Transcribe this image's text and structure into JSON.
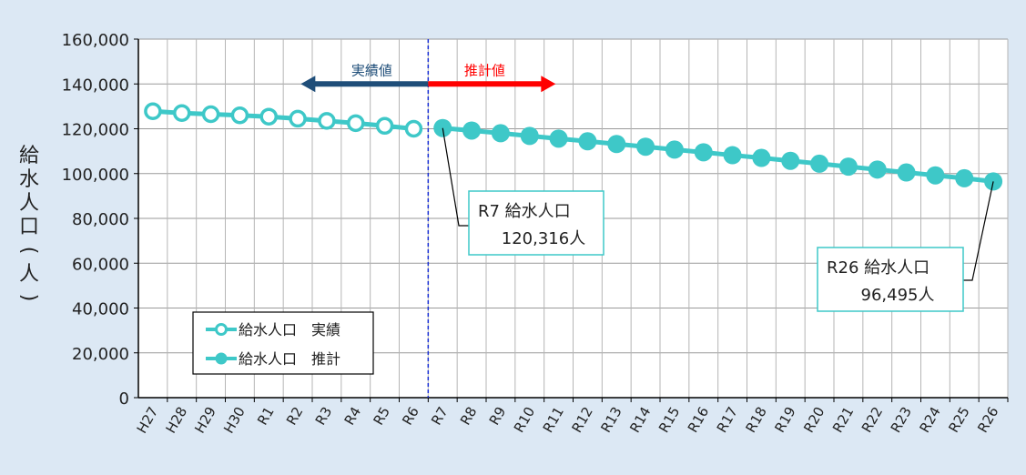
{
  "chart_data": {
    "type": "line",
    "ylabel": "給水人口(人)",
    "ylim": [
      0,
      160000
    ],
    "yticks": [
      0,
      20000,
      40000,
      60000,
      80000,
      100000,
      120000,
      140000,
      160000
    ],
    "ytick_labels": [
      "0",
      "20,000",
      "40,000",
      "60,000",
      "80,000",
      "100,000",
      "120,000",
      "140,000",
      "160,000"
    ],
    "grid": true,
    "categories": [
      "H27",
      "H28",
      "H29",
      "H30",
      "R1",
      "R2",
      "R3",
      "R4",
      "R5",
      "R6",
      "R7",
      "R8",
      "R9",
      "R10",
      "R11",
      "R12",
      "R13",
      "R14",
      "R15",
      "R16",
      "R17",
      "R18",
      "R19",
      "R20",
      "R21",
      "R22",
      "R23",
      "R24",
      "R25",
      "R26"
    ],
    "series": [
      {
        "name": "給水人口　実績",
        "marker": "open-circle",
        "color": "#3ec8c8",
        "values": [
          127800,
          127000,
          126500,
          126000,
          125400,
          124500,
          123500,
          122500,
          121300,
          120000,
          null,
          null,
          null,
          null,
          null,
          null,
          null,
          null,
          null,
          null,
          null,
          null,
          null,
          null,
          null,
          null,
          null,
          null,
          null,
          null
        ]
      },
      {
        "name": "給水人口　推計",
        "marker": "filled-circle",
        "color": "#3ec8c8",
        "values": [
          null,
          null,
          null,
          null,
          null,
          null,
          null,
          null,
          null,
          null,
          120316,
          119200,
          118000,
          116800,
          115600,
          114400,
          113200,
          112000,
          110700,
          109500,
          108200,
          107000,
          105700,
          104400,
          103100,
          101800,
          100500,
          99200,
          97900,
          96495
        ]
      }
    ],
    "divider_after": "R6",
    "arrows": [
      {
        "label": "実績値",
        "direction": "left",
        "color": "#1f4e79"
      },
      {
        "label": "推計値",
        "direction": "right",
        "color": "#ff0000"
      }
    ],
    "callouts": [
      {
        "category": "R7",
        "line1": "R7 給水人口",
        "line2": "120,316人"
      },
      {
        "category": "R26",
        "line1": "R26 給水人口",
        "line2": "96,495人"
      }
    ],
    "legend_position": "bottom-left"
  }
}
